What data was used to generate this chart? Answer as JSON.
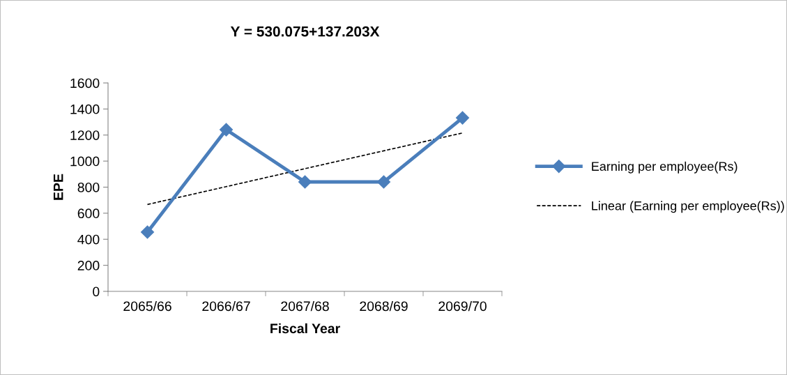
{
  "chart_data": {
    "type": "line",
    "title": "Y = 530.075+137.203X",
    "xlabel": "Fiscal Year",
    "ylabel": "EPE",
    "categories": [
      "2065/66",
      "2066/67",
      "2067/68",
      "2068/69",
      "2069/70"
    ],
    "series": [
      {
        "name": "Earning per employee(Rs)",
        "color": "#4a7ebb",
        "values": [
          455,
          1241,
          840,
          840,
          1332
        ],
        "marker": "diamond",
        "line_style": "solid"
      },
      {
        "name": "Linear (Earning per employee(Rs))",
        "color": "#000000",
        "values": [
          667,
          804,
          942,
          1079,
          1216
        ],
        "marker": "none",
        "line_style": "dashed"
      }
    ],
    "ylim": [
      0,
      1600
    ],
    "yticks": [
      0,
      200,
      400,
      600,
      800,
      1000,
      1200,
      1400,
      1600
    ],
    "grid": false,
    "legend": "right"
  }
}
